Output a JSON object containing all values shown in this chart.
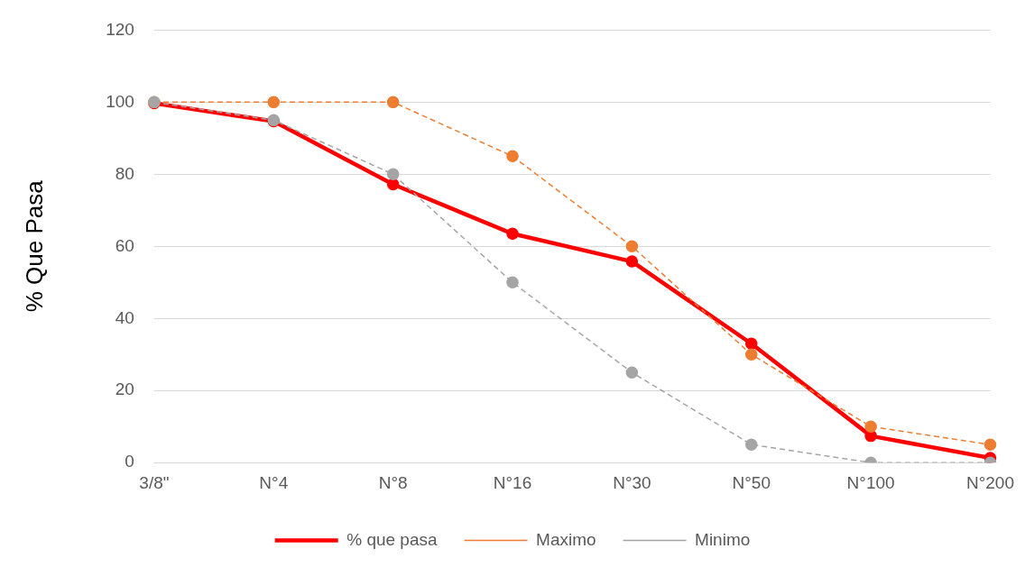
{
  "chart_data": {
    "type": "line",
    "ylabel": "% Que Pasa",
    "categories": [
      "3/8\"",
      "N°4",
      "N°8",
      "N°16",
      "N°30",
      "N°50",
      "N°100",
      "N°200"
    ],
    "series": [
      {
        "name": "% que pasa",
        "color": "#ff0000",
        "line_style": "solid",
        "values": [
          99.7,
          94.7,
          77.2,
          63.5,
          55.8,
          33,
          7.4,
          1.3
        ]
      },
      {
        "name": "Maximo",
        "color": "#ed7d31",
        "line_style": "dashed",
        "values": [
          100,
          100,
          100,
          85,
          60,
          30,
          10,
          5
        ]
      },
      {
        "name": "Minimo",
        "color": "#a5a5a5",
        "line_style": "dashed",
        "values": [
          100,
          95,
          80,
          50,
          25,
          5,
          0,
          0
        ]
      }
    ],
    "ylim": [
      0,
      120
    ],
    "yticks": [
      0,
      20,
      40,
      60,
      80,
      100,
      120
    ],
    "grid": "y",
    "legend": "bottom",
    "marker": "circle"
  }
}
